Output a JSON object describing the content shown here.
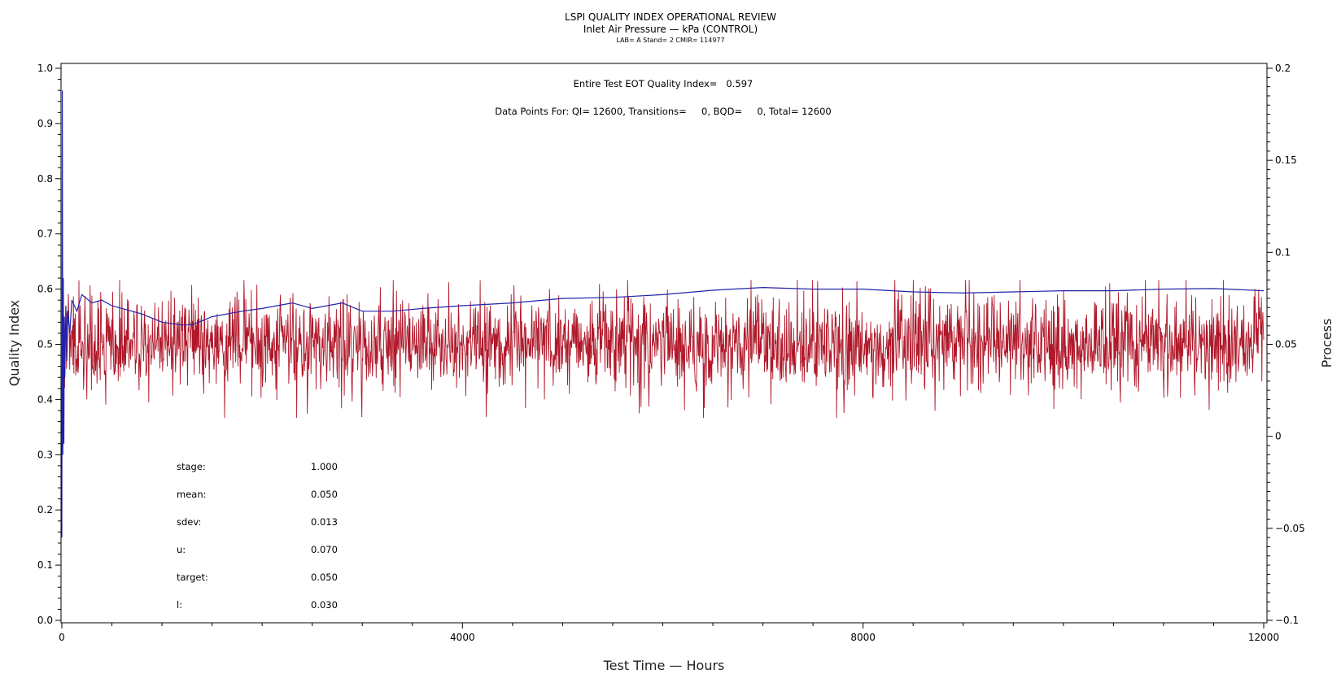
{
  "chart_data": {
    "type": "line",
    "title": "LSPI QUALITY INDEX OPERATIONAL REVIEW",
    "subtitle": "Inlet Air Pressure — kPa (CONTROL)",
    "subtitle2": "LAB= A Stand= 2 CMIR= 114977",
    "xlabel": "Test Time — Hours",
    "ylabel": "Quality Index",
    "y2label": "Process",
    "xlim": [
      0,
      12000
    ],
    "ylim": [
      0.0,
      1.0
    ],
    "y2lim": [
      -0.1,
      0.2
    ],
    "x_ticks": [
      "0",
      "4000",
      "8000",
      "12000"
    ],
    "x_tick_values": [
      0,
      4000,
      8000,
      12000
    ],
    "y_ticks": [
      "0.0",
      "0.1",
      "0.2",
      "0.3",
      "0.4",
      "0.5",
      "0.6",
      "0.7",
      "0.8",
      "0.9",
      "1.0"
    ],
    "y_tick_values": [
      0.0,
      0.1,
      0.2,
      0.3,
      0.4,
      0.5,
      0.6,
      0.7,
      0.8,
      0.9,
      1.0
    ],
    "y2_ticks": [
      "−0.1",
      "−0.05",
      "0",
      "0.05",
      "0.1",
      "0.15",
      "0.2"
    ],
    "y2_tick_values": [
      -0.1,
      -0.05,
      0,
      0.05,
      0.1,
      0.15,
      0.2
    ],
    "annotations": {
      "eot": "Entire Test EOT Quality Index=   0.597",
      "points": "Data Points For: QI= 12600, Transitions=     0, BQD=     0, Total= 12600"
    },
    "stats": [
      {
        "label": "stage:",
        "value": "1.000"
      },
      {
        "label": "mean:",
        "value": "0.050"
      },
      {
        "label": "sdev:",
        "value": "0.013"
      },
      {
        "label": "u:",
        "value": "0.070"
      },
      {
        "label": "target:",
        "value": "0.050"
      },
      {
        "label": "l:",
        "value": "0.030"
      }
    ],
    "series": [
      {
        "axis": "right",
        "color": "#b0182a",
        "process_target": 0.05,
        "process_sdev": 0.013,
        "process_min": 0.01,
        "process_max": 0.085
      },
      {
        "axis": "left",
        "color": "#2222aa",
        "x": [
          0,
          5,
          10,
          15,
          20,
          25,
          30,
          40,
          50,
          60,
          80,
          100,
          150,
          200,
          300,
          400,
          500,
          600,
          800,
          1000,
          1200,
          1300,
          1500,
          1800,
          2000,
          2300,
          2500,
          2800,
          3000,
          3300,
          3600,
          4000,
          4500,
          5000,
          5500,
          6000,
          6500,
          7000,
          7500,
          8000,
          8500,
          9000,
          9500,
          10000,
          10500,
          11000,
          11500,
          12000
        ],
        "y": [
          0.15,
          0.96,
          0.3,
          0.62,
          0.32,
          0.55,
          0.44,
          0.57,
          0.47,
          0.56,
          0.52,
          0.58,
          0.56,
          0.59,
          0.575,
          0.58,
          0.57,
          0.565,
          0.555,
          0.54,
          0.535,
          0.535,
          0.55,
          0.56,
          0.565,
          0.575,
          0.565,
          0.575,
          0.56,
          0.56,
          0.565,
          0.57,
          0.575,
          0.583,
          0.585,
          0.59,
          0.598,
          0.603,
          0.6,
          0.6,
          0.595,
          0.593,
          0.595,
          0.597,
          0.597,
          0.6,
          0.601,
          0.597
        ]
      }
    ]
  },
  "colors": {
    "process_line": "#b0182a",
    "quality_line": "#2222aa"
  }
}
